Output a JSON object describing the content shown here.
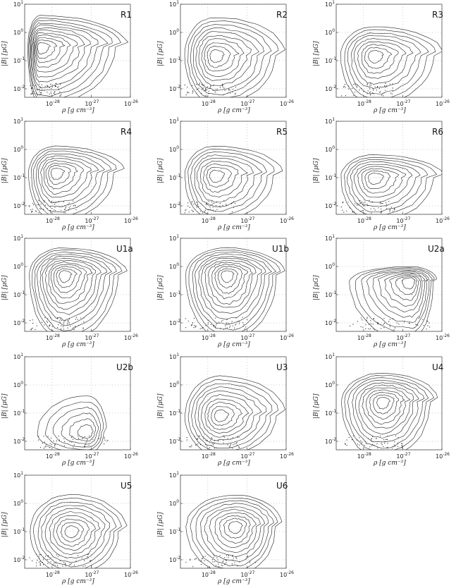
{
  "chart_data": {
    "type": "contour",
    "xlabel": "ρ [g cm⁻³]",
    "ylabel": "|B| [μG]",
    "x_scale": "log",
    "y_scale": "log",
    "xlim": [
      2e-29,
      1e-26
    ],
    "ylim": [
      0.005,
      10
    ],
    "x_ticks": [
      1e-28,
      1e-27,
      1e-26
    ],
    "x_tick_labels": [
      {
        "base": "10",
        "exp": "-28"
      },
      {
        "base": "10",
        "exp": "-27"
      },
      {
        "base": "10",
        "exp": "-26"
      }
    ],
    "y_ticks": [
      0.01,
      0.1,
      1,
      10
    ],
    "y_tick_labels": [
      {
        "base": "10",
        "exp": "-2"
      },
      {
        "base": "10",
        "exp": "-1"
      },
      {
        "base": "10",
        "exp": "0"
      },
      {
        "base": "10",
        "exp": "1"
      }
    ],
    "panels": [
      {
        "label": "R1",
        "peak_rho": 5e-29,
        "peak_B": 0.3,
        "spread_x": 1.0,
        "spread_y": 1.0,
        "max_rho": 6e-27,
        "max_B": 3.0,
        "levels": 12
      },
      {
        "label": "R2",
        "peak_rho": 1.5e-28,
        "peak_B": 0.15,
        "spread_x": 0.8,
        "spread_y": 0.9,
        "max_rho": 7e-27,
        "max_B": 2.5,
        "levels": 10
      },
      {
        "label": "R3",
        "peak_rho": 1.8e-28,
        "peak_B": 0.15,
        "spread_x": 0.7,
        "spread_y": 0.8,
        "max_rho": 8e-27,
        "max_B": 1.2,
        "levels": 9
      },
      {
        "label": "R4",
        "peak_rho": 1.2e-28,
        "peak_B": 0.15,
        "spread_x": 0.75,
        "spread_y": 0.9,
        "max_rho": 5e-27,
        "max_B": 1.0,
        "levels": 10
      },
      {
        "label": "R5",
        "peak_rho": 1.5e-28,
        "peak_B": 0.12,
        "spread_x": 0.75,
        "spread_y": 0.85,
        "max_rho": 6e-27,
        "max_B": 1.0,
        "levels": 9
      },
      {
        "label": "R6",
        "peak_rho": 1.8e-28,
        "peak_B": 0.1,
        "spread_x": 0.7,
        "spread_y": 0.8,
        "max_rho": 8e-27,
        "max_B": 0.5,
        "levels": 9
      },
      {
        "label": "U1a",
        "peak_rho": 2e-28,
        "peak_B": 0.5,
        "spread_x": 0.8,
        "spread_y": 1.1,
        "max_rho": 6e-27,
        "max_B": 3.5,
        "levels": 12
      },
      {
        "label": "U1b",
        "peak_rho": 3e-28,
        "peak_B": 0.5,
        "spread_x": 0.85,
        "spread_y": 1.1,
        "max_rho": 7e-27,
        "max_B": 3.5,
        "levels": 12
      },
      {
        "label": "U2a",
        "peak_rho": 1.5e-27,
        "peak_B": 0.3,
        "spread_x": 0.7,
        "spread_y": 0.9,
        "max_rho": 6e-27,
        "max_B": 0.8,
        "levels": 10
      },
      {
        "label": "U2b",
        "peak_rho": 8e-28,
        "peak_B": 0.02,
        "spread_x": 0.5,
        "spread_y": 0.6,
        "max_rho": 2e-27,
        "max_B": 0.3,
        "levels": 6
      },
      {
        "label": "U3",
        "peak_rho": 2e-28,
        "peak_B": 0.08,
        "spread_x": 0.9,
        "spread_y": 0.8,
        "max_rho": 7e-27,
        "max_B": 1.5,
        "levels": 10
      },
      {
        "label": "U4",
        "peak_rho": 3e-28,
        "peak_B": 0.25,
        "spread_x": 0.8,
        "spread_y": 0.9,
        "max_rho": 6e-27,
        "max_B": 2.0,
        "levels": 11
      },
      {
        "label": "U5",
        "peak_rho": 3e-28,
        "peak_B": 0.1,
        "spread_x": 0.8,
        "spread_y": 0.8,
        "max_rho": 6e-27,
        "max_B": 1.5,
        "levels": 10
      },
      {
        "label": "U6",
        "peak_rho": 5e-28,
        "peak_B": 0.15,
        "spread_x": 0.8,
        "spread_y": 0.9,
        "max_rho": 6e-27,
        "max_B": 1.5,
        "levels": 10
      }
    ]
  }
}
